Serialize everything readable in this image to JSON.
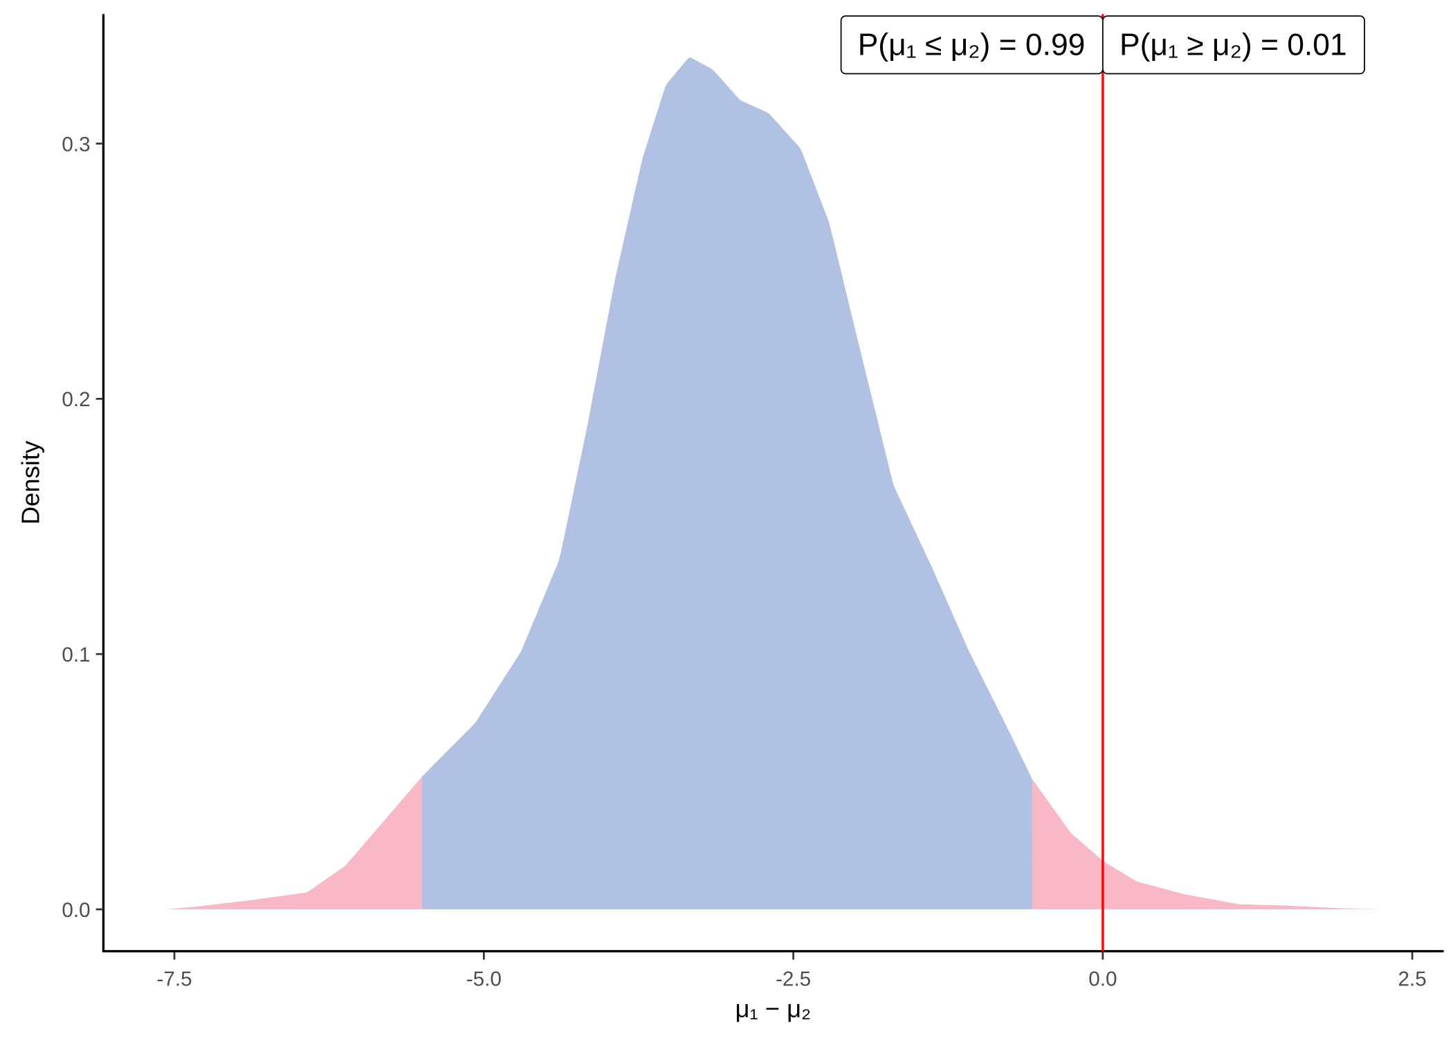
{
  "chart_data": {
    "type": "area",
    "title": "",
    "xlabel": "μ₁ − μ₂",
    "ylabel": "Density",
    "xlim": [
      -8.2,
      2.75
    ],
    "ylim": [
      -0.0165,
      0.35
    ],
    "x_ticks": [
      -7.5,
      -5.0,
      -2.5,
      0.0,
      2.5
    ],
    "x_tick_labels": [
      "-7.5",
      "-5.0",
      "-2.5",
      "0.0",
      "2.5"
    ],
    "y_ticks": [
      0.0,
      0.1,
      0.2,
      0.3
    ],
    "y_tick_labels": [
      "0.0",
      "0.1",
      "0.2",
      "0.3"
    ],
    "grid": false,
    "density": {
      "x": [
        -7.57,
        -7.33,
        -6.88,
        -6.43,
        -6.12,
        -5.5,
        -5.07,
        -4.7,
        -4.39,
        -4.17,
        -3.94,
        -3.72,
        -3.53,
        -3.34,
        -3.15,
        -2.93,
        -2.7,
        -2.44,
        -2.21,
        -1.99,
        -1.69,
        -1.38,
        -1.08,
        -0.78,
        -0.57,
        -0.26,
        0.0,
        0.27,
        0.65,
        1.1,
        1.47,
        1.93,
        2.26
      ],
      "y": [
        0,
        0.001,
        0.0036,
        0.0066,
        0.017,
        0.052,
        0.073,
        0.101,
        0.137,
        0.188,
        0.247,
        0.294,
        0.323,
        0.334,
        0.329,
        0.317,
        0.312,
        0.298,
        0.269,
        0.225,
        0.166,
        0.134,
        0.101,
        0.072,
        0.051,
        0.03,
        0.019,
        0.011,
        0.006,
        0.002,
        0.0015,
        0.0004,
        0
      ]
    },
    "interval": [
      -5.5,
      -0.57
    ],
    "reference_line_x": 0.0,
    "annotations": [
      "P(μ₁ ≤ μ₂) = 0.99",
      "P(μ₁ ≥ μ₂) = 0.01"
    ],
    "colors": {
      "interval_fill": "#b0c1e3",
      "tail_fill": "#f8b8c5",
      "reference_line": "#ff0000"
    }
  }
}
